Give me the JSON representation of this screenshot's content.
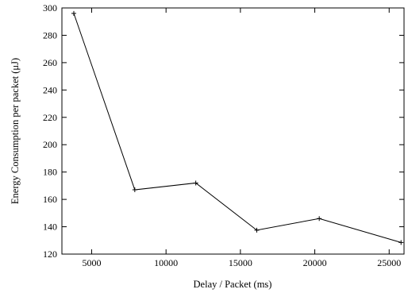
{
  "chart_data": {
    "type": "line",
    "title": "",
    "xlabel": "Delay / Packet (ms)",
    "ylabel": "Energy Consumption per packet (μJ)",
    "xlim": [
      3000,
      26000
    ],
    "ylim": [
      120,
      300
    ],
    "xticks": [
      5000,
      10000,
      15000,
      20000,
      25000
    ],
    "yticks": [
      120,
      140,
      160,
      180,
      200,
      220,
      240,
      260,
      280,
      300
    ],
    "grid": false,
    "legend": "none",
    "marker": "plus",
    "line_color": "#000000",
    "series": [
      {
        "x": [
          3800,
          7900,
          12000,
          16100,
          20300,
          25800
        ],
        "y": [
          296,
          167,
          172,
          137.5,
          146,
          128.5
        ]
      }
    ]
  }
}
